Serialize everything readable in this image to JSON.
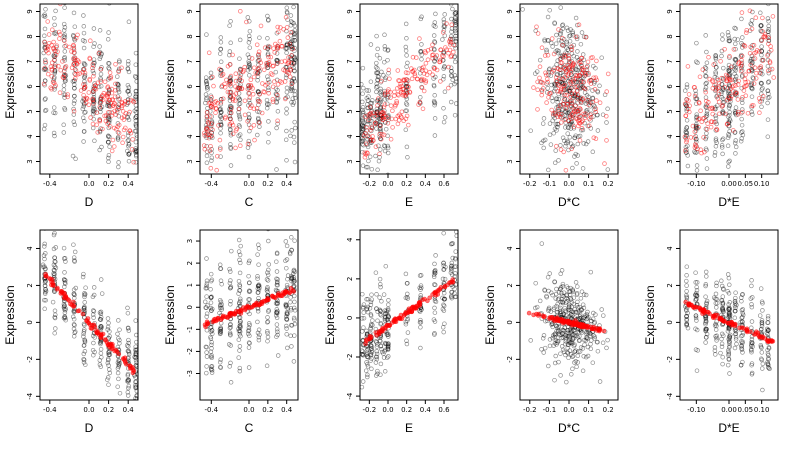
{
  "colors": {
    "observed": "#000000",
    "fitted": "#ff0000",
    "background": "#ffffff"
  },
  "chart_data": [
    {
      "type": "scatter",
      "xlabel": "D",
      "ylabel": "Expression",
      "xlim": [
        -0.5,
        0.5
      ],
      "ylim": [
        2.5,
        9.3
      ],
      "xticks": [
        -0.4,
        0.0,
        0.2,
        0.4
      ],
      "xtick_labels": [
        "-0.4",
        "0.0",
        "0.2",
        "0.4"
      ],
      "yticks": [
        3,
        4,
        5,
        6,
        7,
        8,
        9
      ],
      "ytick_labels": [
        "3",
        "4",
        "5",
        "6",
        "7",
        "8",
        "9"
      ],
      "x_clusters": [
        -0.45,
        -0.35,
        -0.25,
        -0.15,
        -0.05,
        0.05,
        0.12,
        0.2,
        0.3,
        0.4,
        0.48
      ],
      "observed": {
        "intercept": 6.0,
        "slope": -3.2,
        "sd": 1.3
      },
      "fitted": {
        "style": "open",
        "intercept": 6.0,
        "slope": -3.2,
        "sd": 0.75,
        "n": 200
      },
      "n_points": 360
    },
    {
      "type": "scatter",
      "xlabel": "C",
      "ylabel": "Expression",
      "xlim": [
        -0.52,
        0.52
      ],
      "ylim": [
        2.5,
        9.3
      ],
      "xticks": [
        -0.4,
        0.0,
        0.2,
        0.4
      ],
      "xtick_labels": [
        "-0.4",
        "0.0",
        "0.2",
        "0.4"
      ],
      "yticks": [
        3,
        4,
        5,
        6,
        7,
        8,
        9
      ],
      "ytick_labels": [
        "3",
        "4",
        "5",
        "6",
        "7",
        "8",
        "9"
      ],
      "x_clusters": [
        -0.45,
        -0.4,
        -0.3,
        -0.2,
        -0.1,
        0.0,
        0.1,
        0.2,
        0.3,
        0.4,
        0.45,
        0.48
      ],
      "observed": {
        "intercept": 5.9,
        "slope": 2.5,
        "sd": 1.4
      },
      "fitted": {
        "style": "open",
        "intercept": 5.9,
        "slope": 2.5,
        "sd": 1.0,
        "n": 200
      },
      "n_points": 380
    },
    {
      "type": "scatter",
      "xlabel": "E",
      "ylabel": "Expression",
      "xlim": [
        -0.3,
        0.75
      ],
      "ylim": [
        2.5,
        9.3
      ],
      "xticks": [
        -0.2,
        0.0,
        0.2,
        0.4,
        0.6
      ],
      "xtick_labels": [
        "-0.2",
        "0.0",
        "0.2",
        "0.4",
        "0.6"
      ],
      "yticks": [
        3,
        4,
        5,
        6,
        7,
        8,
        9
      ],
      "ytick_labels": [
        "3",
        "4",
        "5",
        "6",
        "7",
        "8",
        "9"
      ],
      "x_clusters": [
        -0.27,
        -0.22,
        -0.18,
        -0.12,
        -0.08,
        -0.03,
        0.0,
        0.2,
        0.35,
        0.5,
        0.6,
        0.68,
        0.72
      ],
      "observed": {
        "intercept": 5.2,
        "slope": 3.6,
        "sd": 1.2
      },
      "fitted": {
        "style": "open",
        "intercept": 5.2,
        "slope": 3.6,
        "sd": 0.6,
        "n": 180
      },
      "n_points": 340
    },
    {
      "type": "scatter",
      "xlabel": "D*C",
      "ylabel": "Expression",
      "xlim": [
        -0.25,
        0.25
      ],
      "ylim": [
        2.5,
        9.3
      ],
      "xticks": [
        -0.2,
        -0.1,
        0.0,
        0.1,
        0.2
      ],
      "xtick_labels": [
        "-0.2",
        "-0.1",
        "0.0",
        "0.1",
        "0.2"
      ],
      "yticks": [
        3,
        4,
        5,
        6,
        7,
        8,
        9
      ],
      "ytick_labels": [
        "3",
        "4",
        "5",
        "6",
        "7",
        "8",
        "9"
      ],
      "x_clusters": null,
      "observed": {
        "intercept": 5.9,
        "slope": -1.0,
        "sd": 1.4,
        "xsd": 0.07
      },
      "fitted": {
        "style": "open",
        "intercept": 5.9,
        "slope": -1.0,
        "sd": 1.1,
        "n": 200,
        "xsd": 0.08
      },
      "n_points": 380
    },
    {
      "type": "scatter",
      "xlabel": "D*E",
      "ylabel": "Expression",
      "xlim": [
        -0.15,
        0.15
      ],
      "ylim": [
        2.5,
        9.3
      ],
      "xticks": [
        -0.1,
        0.0,
        0.05,
        0.1
      ],
      "xtick_labels": [
        "-0.10",
        "0.00",
        "0.05",
        "0.10"
      ],
      "yticks": [
        3,
        4,
        5,
        6,
        7,
        8,
        9
      ],
      "ytick_labels": [
        "3",
        "4",
        "5",
        "6",
        "7",
        "8",
        "9"
      ],
      "x_clusters": [
        -0.13,
        -0.1,
        -0.07,
        -0.04,
        -0.02,
        0.0,
        0.0,
        0.02,
        0.04,
        0.07,
        0.1,
        0.12
      ],
      "observed": {
        "intercept": 5.9,
        "slope": 12.0,
        "sd": 1.3
      },
      "fitted": {
        "style": "open",
        "intercept": 5.9,
        "slope": 12.0,
        "sd": 0.9,
        "n": 180
      },
      "n_points": 360
    },
    {
      "type": "scatter",
      "xlabel": "D",
      "ylabel": "Expression",
      "xlim": [
        -0.5,
        0.5
      ],
      "ylim": [
        -4.2,
        5.0
      ],
      "xticks": [
        -0.4,
        0.0,
        0.2,
        0.4
      ],
      "xtick_labels": [
        "-0.4",
        "0.0",
        "0.2",
        "0.4"
      ],
      "yticks": [
        -4,
        -2,
        0,
        2,
        4
      ],
      "ytick_labels": [
        "-4",
        "-2",
        "0",
        "2",
        "4"
      ],
      "x_clusters": [
        -0.45,
        -0.35,
        -0.25,
        -0.15,
        -0.05,
        0.05,
        0.12,
        0.2,
        0.3,
        0.4,
        0.48
      ],
      "observed": {
        "intercept": 0.0,
        "slope": -5.8,
        "sd": 1.1
      },
      "fitted": {
        "style": "filled",
        "intercept": 0.0,
        "slope": -5.8,
        "sd": 0.08,
        "n": 90
      },
      "n_points": 340
    },
    {
      "type": "scatter",
      "xlabel": "C",
      "ylabel": "Expression",
      "xlim": [
        -0.52,
        0.52
      ],
      "ylim": [
        -4.2,
        3.5
      ],
      "xticks": [
        -0.4,
        0.0,
        0.2,
        0.4
      ],
      "xtick_labels": [
        "-0.4",
        "0.0",
        "0.2",
        "0.4"
      ],
      "yticks": [
        -3,
        -2,
        -1,
        0,
        1,
        2,
        3
      ],
      "ytick_labels": [
        "-3",
        "-2",
        "-1",
        "0",
        "1",
        "2",
        "3"
      ],
      "x_clusters": [
        -0.45,
        -0.4,
        -0.3,
        -0.2,
        -0.1,
        0.0,
        0.1,
        0.2,
        0.3,
        0.4,
        0.45,
        0.48
      ],
      "observed": {
        "intercept": 0.0,
        "slope": 1.7,
        "sd": 1.2
      },
      "fitted": {
        "style": "filled",
        "intercept": 0.0,
        "slope": 1.7,
        "sd": 0.05,
        "n": 90
      },
      "n_points": 360
    },
    {
      "type": "scatter",
      "xlabel": "E",
      "ylabel": "Expression",
      "xlim": [
        -0.3,
        0.75
      ],
      "ylim": [
        -4.2,
        4.5
      ],
      "xticks": [
        -0.2,
        0.0,
        0.2,
        0.4,
        0.6
      ],
      "xtick_labels": [
        "-0.2",
        "0.0",
        "0.2",
        "0.4",
        "0.6"
      ],
      "yticks": [
        -4,
        -2,
        0,
        2,
        4
      ],
      "ytick_labels": [
        "-4",
        "-2",
        "0",
        "2",
        "4"
      ],
      "x_clusters": [
        -0.27,
        -0.22,
        -0.18,
        -0.12,
        -0.08,
        -0.03,
        0.0,
        0.2,
        0.35,
        0.5,
        0.6,
        0.68,
        0.72
      ],
      "observed": {
        "intercept": -0.4,
        "slope": 3.3,
        "sd": 1.1
      },
      "fitted": {
        "style": "filled",
        "intercept": -0.4,
        "slope": 3.3,
        "sd": 0.06,
        "n": 90
      },
      "n_points": 320
    },
    {
      "type": "scatter",
      "xlabel": "D*C",
      "ylabel": "Expression",
      "xlim": [
        -0.25,
        0.25
      ],
      "ylim": [
        -4.2,
        5.0
      ],
      "xticks": [
        -0.2,
        -0.1,
        0.0,
        0.1,
        0.2
      ],
      "xtick_labels": [
        "-0.2",
        "-0.1",
        "0.0",
        "0.1",
        "0.2"
      ],
      "yticks": [
        -2,
        0,
        2,
        4
      ],
      "ytick_labels": [
        "-2",
        "0",
        "2",
        "4"
      ],
      "x_clusters": null,
      "observed": {
        "intercept": 0.0,
        "slope": -2.5,
        "sd": 1.1,
        "xsd": 0.07
      },
      "fitted": {
        "style": "filled",
        "intercept": 0.0,
        "slope": -2.5,
        "sd": 0.05,
        "n": 110,
        "xsd": 0.09
      },
      "n_points": 380
    },
    {
      "type": "scatter",
      "xlabel": "D*E",
      "ylabel": "Expression",
      "xlim": [
        -0.15,
        0.15
      ],
      "ylim": [
        -4.2,
        5.0
      ],
      "xticks": [
        -0.1,
        0.0,
        0.05,
        0.1
      ],
      "xtick_labels": [
        "-0.10",
        "0.00",
        "0.05",
        "0.10"
      ],
      "yticks": [
        -4,
        -2,
        0,
        2,
        4
      ],
      "ytick_labels": [
        "-4",
        "-2",
        "0",
        "2",
        "4"
      ],
      "x_clusters": [
        -0.13,
        -0.1,
        -0.07,
        -0.04,
        -0.02,
        0.0,
        0.0,
        0.02,
        0.04,
        0.07,
        0.1,
        0.12
      ],
      "observed": {
        "intercept": 0.0,
        "slope": -8.0,
        "sd": 1.1
      },
      "fitted": {
        "style": "filled",
        "intercept": 0.0,
        "slope": -8.0,
        "sd": 0.06,
        "n": 90
      },
      "n_points": 340
    }
  ]
}
